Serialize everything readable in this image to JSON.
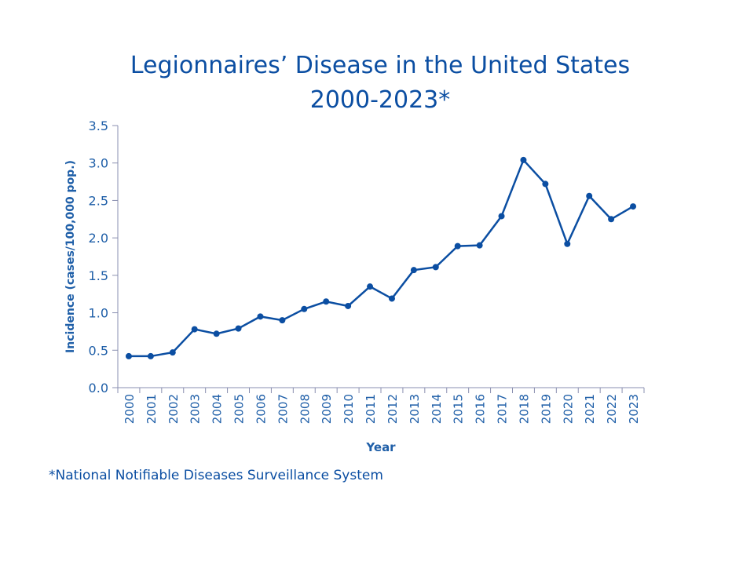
{
  "colors": {
    "line": "#0b4ea2",
    "text": "#1f5fa8",
    "axis": "#8a8fb0"
  },
  "footnote": "*National Notifiable Diseases Surveillance System",
  "chart_data": {
    "type": "line",
    "title": "Legionnaires’ Disease in the United States",
    "subtitle": "2000-2023*",
    "xlabel": "Year",
    "ylabel": "Incidence (cases/100,000 pop.)",
    "ylim": [
      0,
      3.5
    ],
    "yticks": [
      "0.0",
      "0.5",
      "1.0",
      "1.5",
      "2.0",
      "2.5",
      "3.0",
      "3.5"
    ],
    "grid": false,
    "categories": [
      "2000",
      "2001",
      "2002",
      "2003",
      "2004",
      "2005",
      "2006",
      "2007",
      "2008",
      "2009",
      "2010",
      "2011",
      "2012",
      "2013",
      "2014",
      "2015",
      "2016",
      "2017",
      "2018",
      "2019",
      "2020",
      "2021",
      "2022",
      "2023"
    ],
    "series": [
      {
        "name": "Incidence",
        "values": [
          0.42,
          0.42,
          0.47,
          0.78,
          0.72,
          0.79,
          0.95,
          0.9,
          1.05,
          1.15,
          1.09,
          1.35,
          1.19,
          1.57,
          1.61,
          1.89,
          1.9,
          2.29,
          3.04,
          2.72,
          1.92,
          2.56,
          2.25,
          2.42
        ]
      }
    ]
  }
}
